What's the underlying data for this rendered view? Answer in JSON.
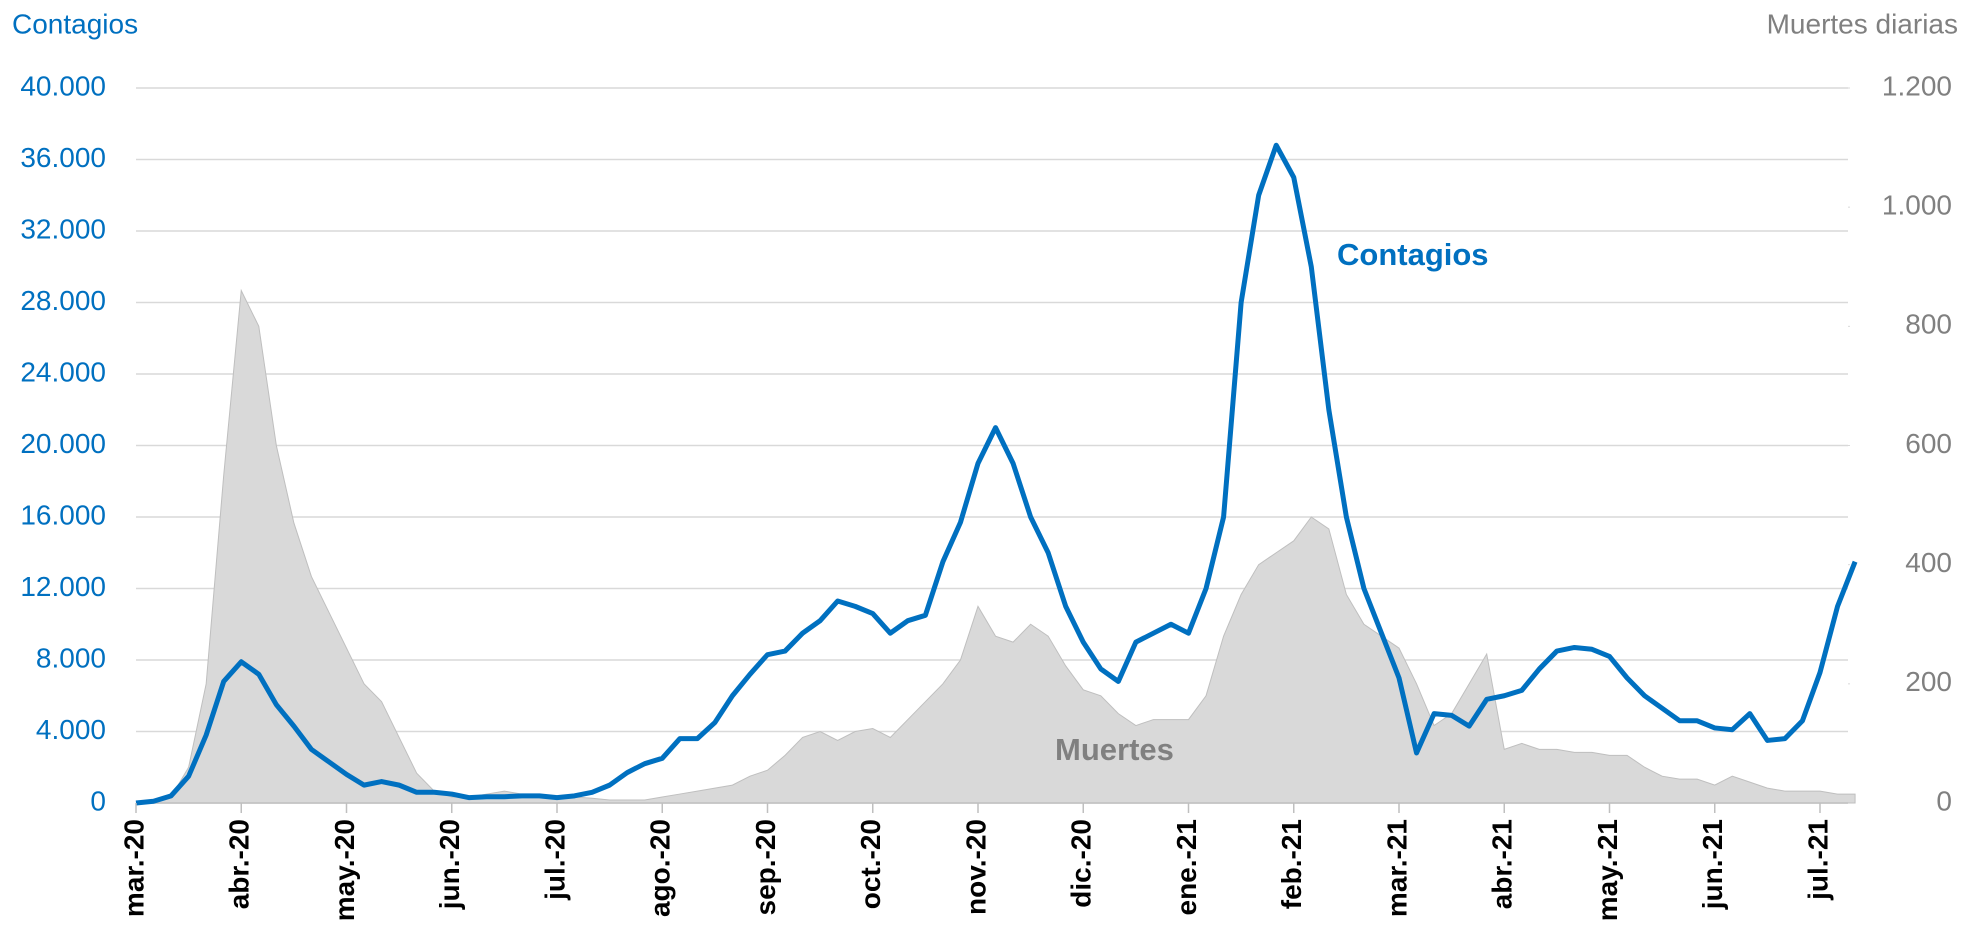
{
  "chart_data": {
    "type": "line",
    "y_label": "Contagios",
    "y2_label": "Muertes diarias",
    "categories": [
      "mar.-20",
      null,
      null,
      null,
      null,
      null,
      "abr.-20",
      null,
      null,
      null,
      null,
      null,
      "may.-20",
      null,
      null,
      null,
      null,
      null,
      "jun.-20",
      null,
      null,
      null,
      null,
      null,
      "jul.-20",
      null,
      null,
      null,
      null,
      null,
      "ago.-20",
      null,
      null,
      null,
      null,
      null,
      "sep.-20",
      null,
      null,
      null,
      null,
      null,
      "oct.-20",
      null,
      null,
      null,
      null,
      null,
      "nov.-20",
      null,
      null,
      null,
      null,
      null,
      "dic.-20",
      null,
      null,
      null,
      null,
      null,
      "ene.-21",
      null,
      null,
      null,
      null,
      null,
      "feb.-21",
      null,
      null,
      null,
      null,
      null,
      "mar.-21",
      null,
      null,
      null,
      null,
      null,
      "abr.-21",
      null,
      null,
      null,
      null,
      null,
      "may.-21",
      null,
      null,
      null,
      null,
      null,
      "jun.-21",
      null,
      null,
      null,
      null,
      null,
      "jul.-21",
      null,
      null
    ],
    "series": [
      {
        "name": "Contagios",
        "color": "#0070c0",
        "axis": "y",
        "values": [
          0,
          100,
          400,
          1500,
          3800,
          6800,
          7900,
          7200,
          5500,
          4300,
          3000,
          2300,
          1600,
          1000,
          1200,
          1000,
          600,
          600,
          500,
          300,
          350,
          350,
          400,
          400,
          300,
          400,
          600,
          1000,
          1700,
          2200,
          2500,
          3600,
          3600,
          4500,
          6000,
          7200,
          8300,
          8500,
          9500,
          10200,
          11300,
          11000,
          10600,
          9500,
          10200,
          10500,
          13500,
          15700,
          19000,
          21000,
          19000,
          16000,
          14000,
          11000,
          9000,
          7500,
          6800,
          9000,
          9500,
          10000,
          9500,
          12000,
          16000,
          28000,
          34000,
          36800,
          35000,
          30000,
          22000,
          16000,
          12000,
          9500,
          7000,
          2800,
          5000,
          4900,
          4300,
          5800,
          6000,
          6300,
          7500,
          8500,
          8700,
          8600,
          8200,
          7000,
          6000,
          5300,
          4600,
          4600,
          4200,
          4100,
          5000,
          3500,
          3600,
          4600,
          7300,
          11000,
          13500
        ]
      },
      {
        "name": "Muertes",
        "color": "#d9d9d9",
        "axis": "y2",
        "values": [
          0,
          0,
          10,
          60,
          200,
          550,
          860,
          800,
          600,
          470,
          380,
          320,
          260,
          200,
          170,
          110,
          50,
          20,
          10,
          10,
          15,
          20,
          15,
          10,
          10,
          10,
          8,
          5,
          5,
          5,
          10,
          15,
          20,
          25,
          30,
          45,
          55,
          80,
          110,
          120,
          105,
          120,
          125,
          110,
          140,
          170,
          200,
          240,
          330,
          280,
          270,
          300,
          280,
          230,
          190,
          180,
          150,
          130,
          140,
          140,
          140,
          180,
          280,
          350,
          400,
          420,
          440,
          480,
          460,
          350,
          300,
          280,
          260,
          200,
          130,
          150,
          200,
          250,
          90,
          100,
          90,
          90,
          85,
          85,
          80,
          80,
          60,
          45,
          40,
          40,
          30,
          45,
          35,
          25,
          20,
          20,
          20,
          15,
          15
        ]
      }
    ],
    "ylim": [
      0,
      40000
    ],
    "yticks": [
      0,
      {
        "value": 4000,
        "label": "4.000"
      },
      {
        "value": 8000,
        "label": "8.000"
      },
      {
        "value": 12000,
        "label": "12.000"
      },
      {
        "value": 16000,
        "label": "16.000"
      },
      {
        "value": 20000,
        "label": "20.000"
      },
      {
        "value": 24000,
        "label": "24.000"
      },
      {
        "value": 28000,
        "label": "28.000"
      },
      {
        "value": 32000,
        "label": "32.000"
      },
      {
        "value": 36000,
        "label": "36.000"
      },
      {
        "value": 40000,
        "label": "40.000"
      }
    ],
    "y2lim": [
      0,
      1200
    ],
    "y2ticks": [
      0,
      200,
      400,
      600,
      800,
      {
        "value": 1000,
        "label": "1.000"
      },
      {
        "value": 1200,
        "label": "1.200"
      }
    ],
    "grid": true
  }
}
